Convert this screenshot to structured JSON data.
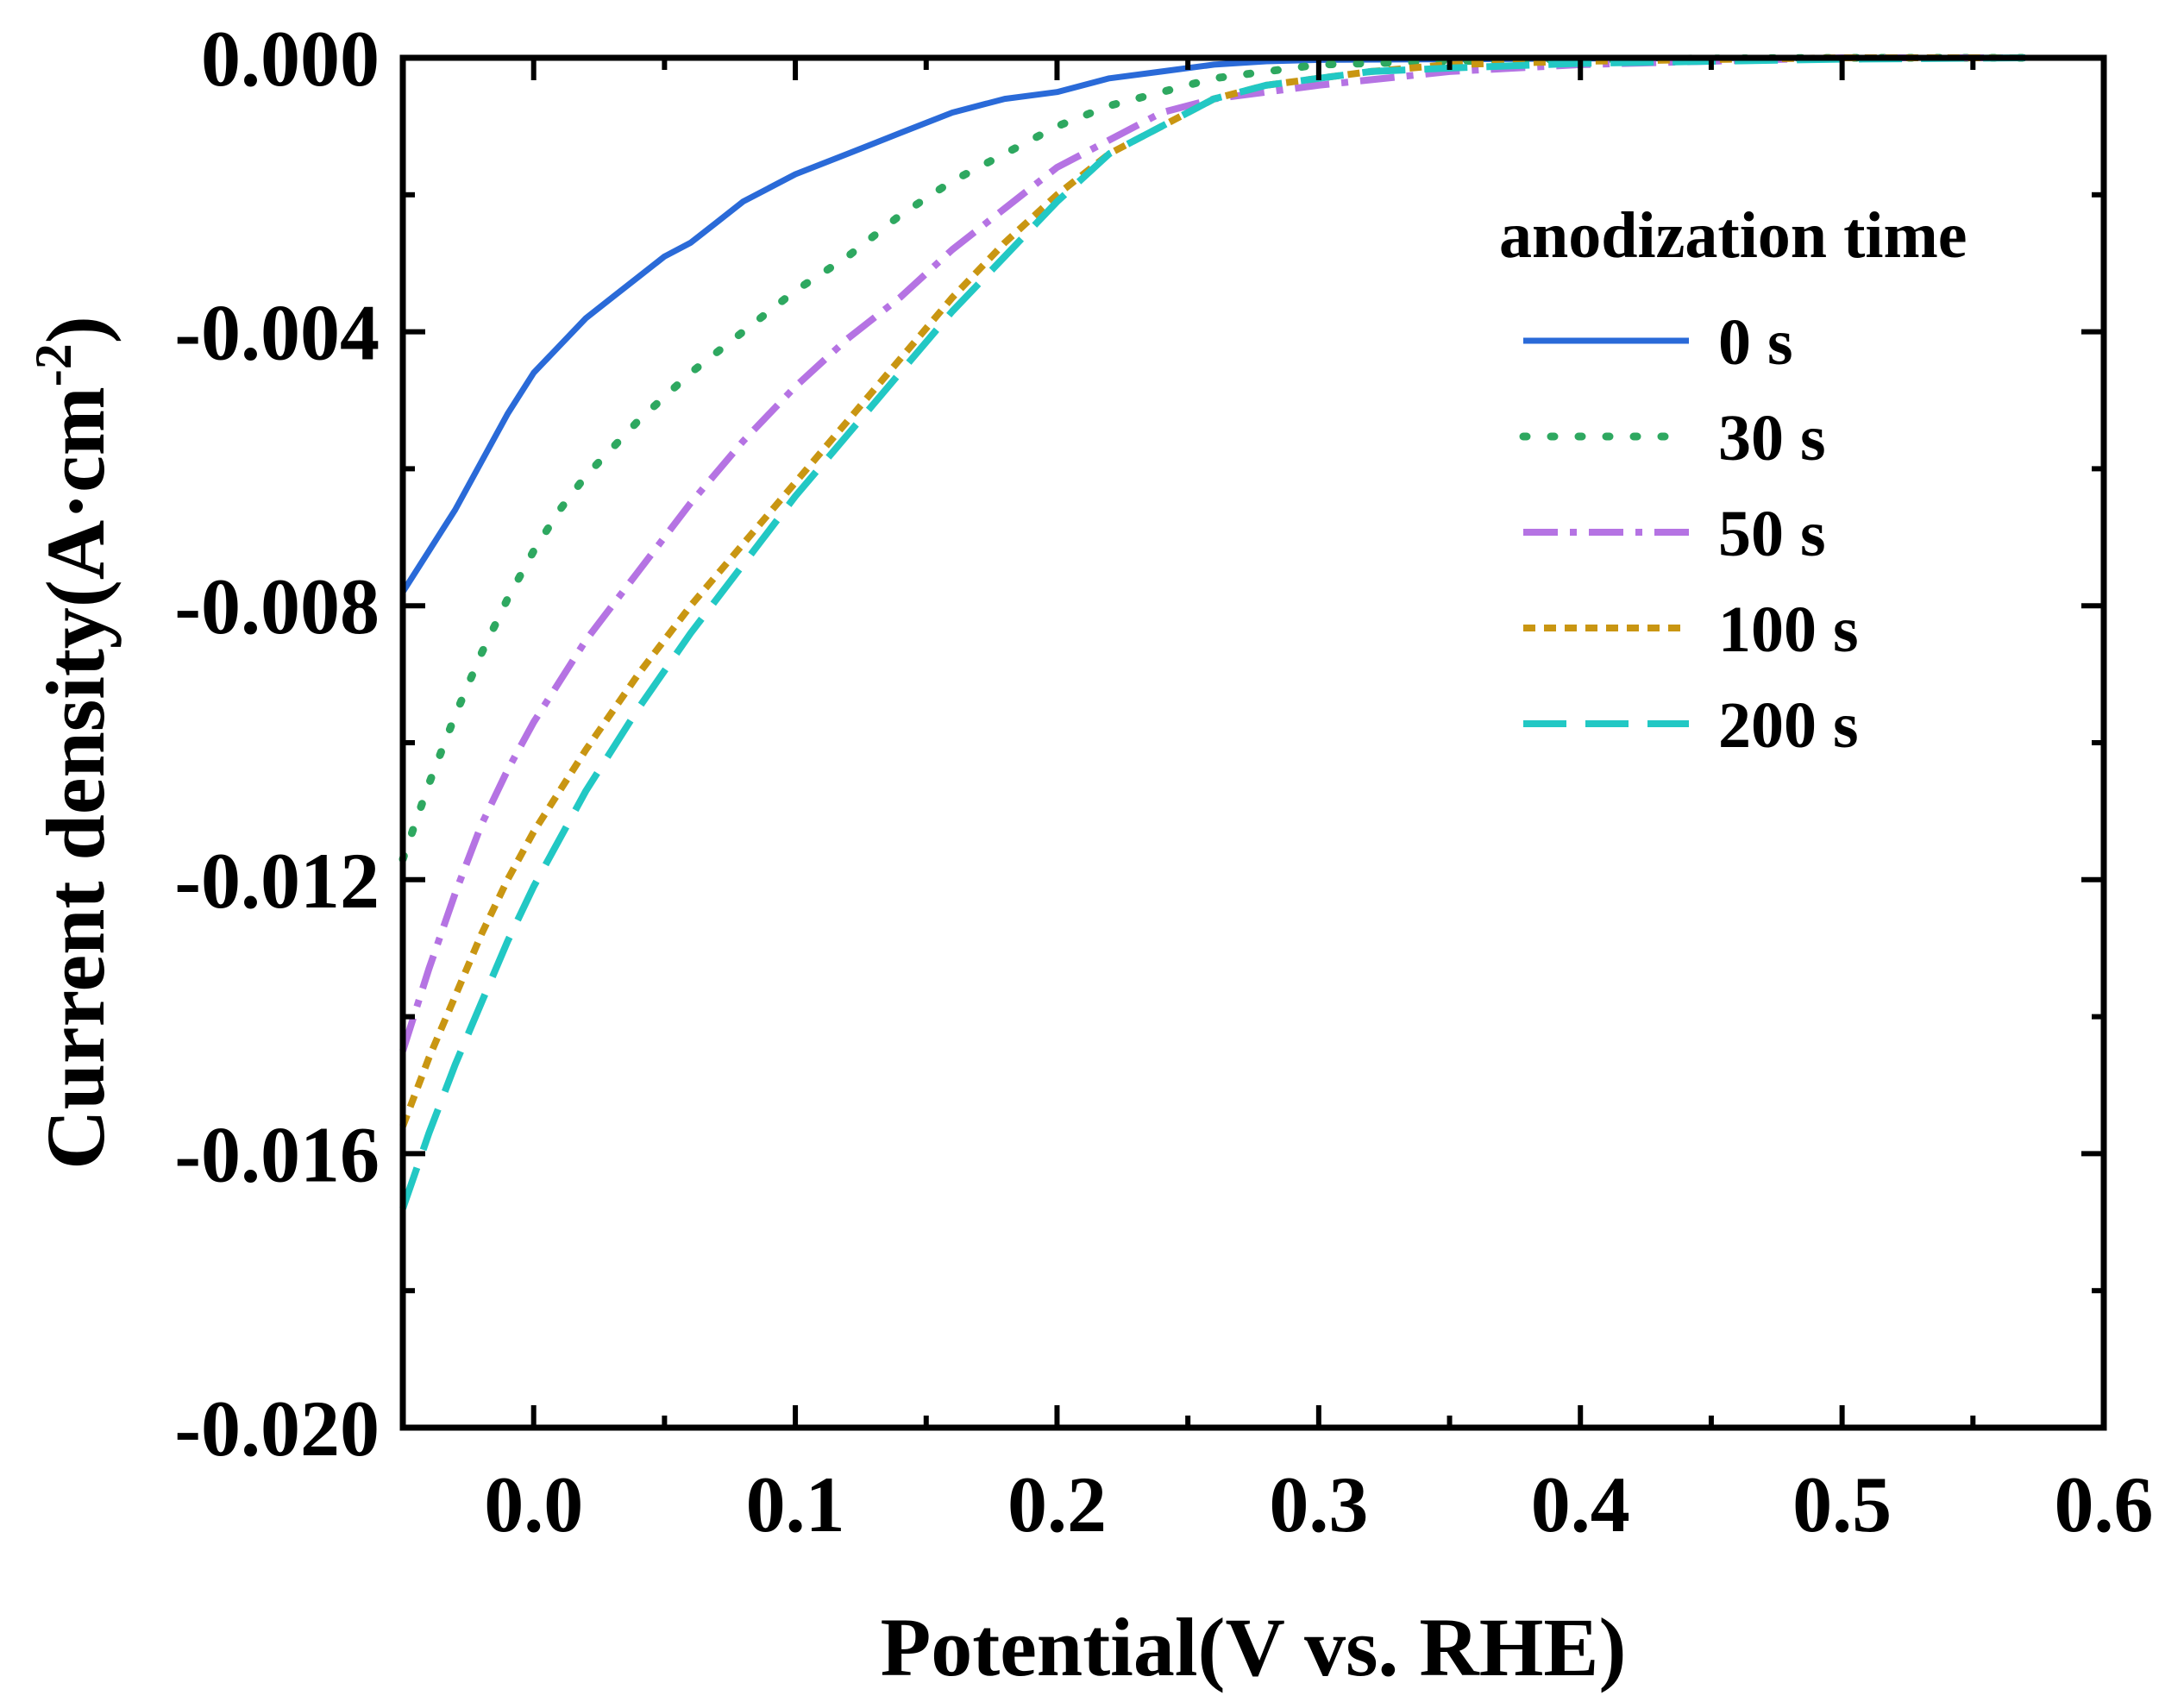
{
  "chart_data": {
    "type": "line",
    "title": "",
    "xlabel": "Potential(V vs. RHE)",
    "ylabel_main": "Current density(A·cm",
    "ylabel_sup": "-2",
    "ylabel_close": ")",
    "xlim": [
      -0.05,
      0.6
    ],
    "ylim": [
      -0.02,
      0.0
    ],
    "x_ticks": [
      0.0,
      0.1,
      0.2,
      0.3,
      0.4,
      0.5,
      0.6
    ],
    "x_tick_labels": [
      "0.0",
      "0.1",
      "0.2",
      "0.3",
      "0.4",
      "0.5",
      "0.6"
    ],
    "y_ticks": [
      0.0,
      -0.004,
      -0.008,
      -0.012,
      -0.016,
      -0.02
    ],
    "y_tick_labels": [
      "0.000",
      "-0.004",
      "-0.008",
      "-0.012",
      "-0.016",
      "-0.020"
    ],
    "grid": false,
    "legend_title": "anodization time",
    "legend_position": "top-right",
    "series": [
      {
        "name": "0 s",
        "color": "#2a6ad8",
        "style": "solid",
        "x": [
          -0.05,
          -0.04,
          -0.03,
          -0.02,
          -0.01,
          0.0,
          0.01,
          0.02,
          0.03,
          0.04,
          0.05,
          0.06,
          0.07,
          0.08,
          0.09,
          0.1,
          0.12,
          0.14,
          0.16,
          0.18,
          0.2,
          0.22,
          0.24,
          0.26,
          0.28,
          0.3,
          0.35,
          0.4,
          0.5,
          0.57
        ],
        "y": [
          -0.0078,
          -0.0072,
          -0.0066,
          -0.0059,
          -0.0052,
          -0.0046,
          -0.0042,
          -0.0038,
          -0.0035,
          -0.0032,
          -0.0029,
          -0.0027,
          -0.0024,
          -0.0021,
          -0.0019,
          -0.0017,
          -0.0014,
          -0.0011,
          -0.0008,
          -0.0006,
          -0.0005,
          -0.0003,
          -0.0002,
          -0.0001,
          -5e-05,
          -3e-05,
          -2e-05,
          -1e-05,
          0.0,
          0.0
        ]
      },
      {
        "name": "30 s",
        "color": "#2ea860",
        "style": "dotted",
        "x": [
          -0.05,
          -0.04,
          -0.03,
          -0.02,
          -0.01,
          0.0,
          0.01,
          0.02,
          0.04,
          0.06,
          0.08,
          0.1,
          0.12,
          0.14,
          0.16,
          0.18,
          0.2,
          0.22,
          0.24,
          0.26,
          0.28,
          0.3,
          0.35,
          0.4,
          0.5,
          0.57
        ],
        "y": [
          -0.0117,
          -0.0106,
          -0.0096,
          -0.0087,
          -0.0079,
          -0.0072,
          -0.0066,
          -0.0061,
          -0.0053,
          -0.0046,
          -0.004,
          -0.0034,
          -0.0029,
          -0.0023,
          -0.0018,
          -0.0014,
          -0.001,
          -0.0007,
          -0.0005,
          -0.0003,
          -0.0002,
          -0.0001,
          -5e-05,
          -2e-05,
          0.0,
          0.0
        ]
      },
      {
        "name": "50 s",
        "color": "#b573e3",
        "style": "dashdot",
        "x": [
          -0.05,
          -0.04,
          -0.03,
          -0.02,
          -0.01,
          0.0,
          0.02,
          0.04,
          0.06,
          0.08,
          0.1,
          0.12,
          0.14,
          0.16,
          0.18,
          0.2,
          0.22,
          0.24,
          0.26,
          0.28,
          0.3,
          0.35,
          0.4,
          0.5,
          0.57
        ],
        "y": [
          -0.0145,
          -0.0133,
          -0.0122,
          -0.0112,
          -0.0104,
          -0.0097,
          -0.0085,
          -0.0075,
          -0.0065,
          -0.0056,
          -0.0048,
          -0.0041,
          -0.0035,
          -0.0028,
          -0.0022,
          -0.0016,
          -0.0012,
          -0.0008,
          -0.0006,
          -0.0005,
          -0.0004,
          -0.0002,
          -0.0001,
          0.0,
          0.0
        ]
      },
      {
        "name": "100 s",
        "color": "#c99612",
        "style": "shortdash",
        "x": [
          -0.05,
          -0.04,
          -0.03,
          -0.02,
          -0.01,
          0.0,
          0.02,
          0.04,
          0.06,
          0.08,
          0.1,
          0.12,
          0.14,
          0.16,
          0.18,
          0.2,
          0.22,
          0.24,
          0.26,
          0.28,
          0.3,
          0.32,
          0.35,
          0.4,
          0.5,
          0.57
        ],
        "y": [
          -0.0156,
          -0.0146,
          -0.0137,
          -0.0128,
          -0.012,
          -0.0113,
          -0.0101,
          -0.009,
          -0.008,
          -0.0071,
          -0.0062,
          -0.0053,
          -0.0044,
          -0.0035,
          -0.0027,
          -0.002,
          -0.0014,
          -0.001,
          -0.0006,
          -0.0004,
          -0.0003,
          -0.0002,
          -0.0001,
          -5e-05,
          0.0,
          0.0
        ]
      },
      {
        "name": "200 s",
        "color": "#22c8c4",
        "style": "longdash",
        "x": [
          -0.05,
          -0.04,
          -0.03,
          -0.02,
          -0.01,
          0.0,
          0.02,
          0.04,
          0.06,
          0.08,
          0.1,
          0.12,
          0.14,
          0.16,
          0.18,
          0.2,
          0.22,
          0.24,
          0.26,
          0.28,
          0.3,
          0.32,
          0.35,
          0.4,
          0.5,
          0.57
        ],
        "y": [
          -0.0168,
          -0.0157,
          -0.0147,
          -0.0138,
          -0.0129,
          -0.0121,
          -0.0107,
          -0.0095,
          -0.0084,
          -0.0074,
          -0.0064,
          -0.0055,
          -0.0046,
          -0.0037,
          -0.0029,
          -0.0021,
          -0.0014,
          -0.001,
          -0.0006,
          -0.0004,
          -0.0003,
          -0.0002,
          -0.00015,
          -8e-05,
          -2e-05,
          0.0
        ]
      }
    ]
  }
}
